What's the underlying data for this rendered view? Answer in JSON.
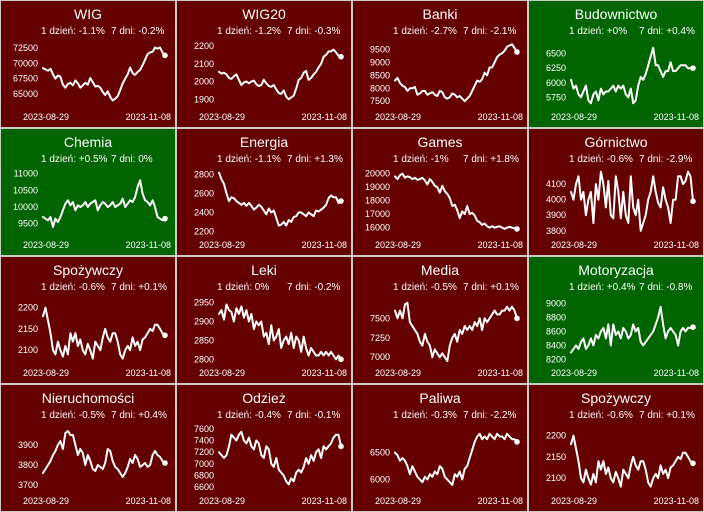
{
  "colors": {
    "down": "#650000",
    "up": "#006400",
    "line": "#ffffff",
    "text": "#ffffff"
  },
  "chart_data": [
    {
      "type": "line",
      "title": "WIG",
      "stat_1d": "1 dzień: -1.1%",
      "stat_7d": "7 dni: -0.2%",
      "trend": "down",
      "yticks": [
        "72500",
        "70000",
        "67500",
        "65000"
      ],
      "ytick_values": [
        72500,
        70000,
        67500,
        65000
      ],
      "ylim": [
        62500,
        74000
      ],
      "xlabels": [
        "2023-08-29",
        "2023-11-08"
      ],
      "values": [
        69200,
        69000,
        68800,
        69100,
        68200,
        67500,
        68000,
        67800,
        66500,
        66000,
        66600,
        66800,
        66400,
        67200,
        66700,
        66000,
        66400,
        66800,
        66500,
        67600,
        66900,
        66200,
        66300,
        66000,
        65300,
        64800,
        65400,
        64500,
        63900,
        64200,
        64600,
        65600,
        66700,
        67500,
        68200,
        69300,
        68400,
        68100,
        68600,
        68900,
        69700,
        70600,
        71500,
        71800,
        71900,
        72600,
        72400,
        72600,
        71800,
        71300
      ]
    },
    {
      "type": "line",
      "title": "WIG20",
      "stat_1d": "1 dzień: -1.2%",
      "stat_7d": "7 dni: -0.3%",
      "trend": "down",
      "yticks": [
        "2200",
        "2100",
        "2000",
        "1900"
      ],
      "ytick_values": [
        2200,
        2100,
        2000,
        1900
      ],
      "ylim": [
        1845,
        2240
      ],
      "xlabels": [
        "2023-08-29",
        "2023-11-08"
      ],
      "values": [
        2055,
        2045,
        2050,
        2040,
        2020,
        2015,
        2030,
        2040,
        2010,
        1980,
        1995,
        2000,
        1990,
        2000,
        2005,
        1985,
        1975,
        1980,
        2010,
        1990,
        1975,
        1970,
        1980,
        1955,
        1935,
        1930,
        1950,
        1915,
        1900,
        1910,
        1920,
        1960,
        2010,
        2020,
        2050,
        2060,
        2010,
        2020,
        2040,
        2055,
        2080,
        2100,
        2140,
        2150,
        2170,
        2170,
        2180,
        2165,
        2145,
        2140
      ]
    },
    {
      "type": "line",
      "title": "Banki",
      "stat_1d": "1 dzień: -2.7%",
      "stat_7d": "7 dni: -2.1%",
      "trend": "down",
      "yticks": [
        "9500",
        "9000",
        "8500",
        "8000",
        "7500"
      ],
      "ytick_values": [
        9500,
        9000,
        8500,
        8000,
        7500
      ],
      "ylim": [
        7200,
        9900
      ],
      "xlabels": [
        "2023-08-29",
        "2023-11-08"
      ],
      "values": [
        8300,
        8400,
        8200,
        8100,
        8050,
        7900,
        8000,
        8000,
        8050,
        7750,
        7800,
        7900,
        7900,
        7750,
        7800,
        7850,
        7750,
        7700,
        7900,
        7850,
        7650,
        7600,
        7650,
        7800,
        7750,
        7650,
        7700,
        7600,
        7500,
        7600,
        7700,
        7900,
        8100,
        8300,
        8250,
        8350,
        8600,
        8500,
        8800,
        8800,
        9000,
        9200,
        9300,
        9350,
        9450,
        9600,
        9650,
        9700,
        9550,
        9400
      ]
    },
    {
      "type": "line",
      "title": "Budownictwo",
      "stat_1d": "1 dzień: +0%",
      "stat_7d": "7 dni: +0.4%",
      "trend": "up",
      "yticks": [
        "6500",
        "6250",
        "6000",
        "5750"
      ],
      "ytick_values": [
        6500,
        6250,
        6000,
        5750
      ],
      "ylim": [
        5550,
        6750
      ],
      "xlabels": [
        "2023-08-29",
        "2023-11-08"
      ],
      "values": [
        6050,
        5900,
        5950,
        5800,
        5750,
        5850,
        5950,
        5700,
        5650,
        5800,
        5850,
        5700,
        5900,
        5800,
        5850,
        5850,
        5900,
        5950,
        5850,
        5950,
        5900,
        5950,
        5800,
        5750,
        5900,
        5650,
        5700,
        5950,
        6100,
        6050,
        6150,
        6300,
        6450,
        6600,
        6300,
        6300,
        6200,
        6100,
        6200,
        6200,
        6350,
        6200,
        6200,
        6250,
        6300,
        6300,
        6300,
        6250,
        6250,
        6250
      ]
    },
    {
      "type": "line",
      "title": "Chemia",
      "stat_1d": "1 dzień: +0.5%",
      "stat_7d": "7 dni: 0%",
      "trend": "up",
      "yticks": [
        "11000",
        "10500",
        "10000",
        "9500"
      ],
      "ytick_values": [
        11000,
        10500,
        10000,
        9500
      ],
      "ylim": [
        9100,
        11200
      ],
      "xlabels": [
        "2023-08-29",
        "2023-11-08"
      ],
      "values": [
        9700,
        9650,
        9600,
        9700,
        9400,
        9650,
        9550,
        9700,
        9900,
        10100,
        10200,
        10050,
        10150,
        9900,
        10050,
        10000,
        10050,
        10150,
        10000,
        10100,
        10150,
        10200,
        9900,
        10050,
        10150,
        10100,
        10000,
        10050,
        10150,
        10000,
        10050,
        10100,
        10250,
        10000,
        10100,
        10200,
        10150,
        10300,
        10600,
        10800,
        10400,
        10200,
        10150,
        10050,
        10200,
        10000,
        9700,
        9650,
        9600,
        9650
      ]
    },
    {
      "type": "line",
      "title": "Energia",
      "stat_1d": "1 dzień: -1.1%",
      "stat_7d": "7 dni: +1.3%",
      "trend": "down",
      "yticks": [
        "2800",
        "2600",
        "2400",
        "2200"
      ],
      "ytick_values": [
        2800,
        2600,
        2400,
        2200
      ],
      "ylim": [
        2140,
        2880
      ],
      "xlabels": [
        "2023-08-29",
        "2023-11-08"
      ],
      "values": [
        2820,
        2750,
        2700,
        2600,
        2520,
        2560,
        2550,
        2520,
        2500,
        2480,
        2500,
        2470,
        2500,
        2470,
        2430,
        2450,
        2480,
        2460,
        2420,
        2380,
        2440,
        2400,
        2420,
        2340,
        2260,
        2270,
        2300,
        2260,
        2320,
        2300,
        2350,
        2360,
        2400,
        2400,
        2380,
        2360,
        2400,
        2380,
        2360,
        2420,
        2410,
        2430,
        2450,
        2480,
        2550,
        2580,
        2560,
        2560,
        2500,
        2520
      ]
    },
    {
      "type": "line",
      "title": "Games",
      "stat_1d": "1 dzień: -1%",
      "stat_7d": "7 dni: +1.8%",
      "trend": "down",
      "yticks": [
        "20000",
        "19000",
        "18000",
        "17000",
        "16000"
      ],
      "ytick_values": [
        20000,
        19000,
        18000,
        17000,
        16000
      ],
      "ylim": [
        15300,
        20500
      ],
      "xlabels": [
        "2023-08-29",
        "2023-11-08"
      ],
      "values": [
        19800,
        19600,
        19900,
        20000,
        19700,
        19800,
        19750,
        19600,
        19700,
        19550,
        19600,
        19700,
        19500,
        19200,
        19600,
        19400,
        19100,
        19000,
        18600,
        19100,
        18700,
        18500,
        18200,
        17600,
        17700,
        17300,
        16700,
        17200,
        17000,
        17600,
        17000,
        17100,
        16900,
        16500,
        16400,
        16200,
        16300,
        16100,
        16000,
        16100,
        16000,
        16050,
        16100,
        16000,
        15900,
        16000,
        16050,
        16000,
        15950,
        15900
      ]
    },
    {
      "type": "line",
      "title": "Górnictwo",
      "stat_1d": "1 dzień: -0.6%",
      "stat_7d": "7 dni: -2.9%",
      "trend": "down",
      "yticks": [
        "4100",
        "4000",
        "3900",
        "3800"
      ],
      "ytick_values": [
        4100,
        4000,
        3900,
        3800
      ],
      "ylim": [
        3760,
        4210
      ],
      "xlabels": [
        "2023-08-29",
        "2023-11-08"
      ],
      "values": [
        4050,
        4000,
        4100,
        4150,
        4000,
        4050,
        3900,
        4000,
        4050,
        3850,
        4100,
        4000,
        4180,
        4100,
        3950,
        4120,
        3900,
        3880,
        4150,
        4050,
        3880,
        4050,
        3900,
        3850,
        4150,
        3950,
        3900,
        4000,
        3800,
        3850,
        3900,
        4000,
        4050,
        4150,
        4050,
        3980,
        3950,
        4080,
        4000,
        3950,
        3850,
        4000,
        4000,
        4150,
        4150,
        4100,
        4120,
        4180,
        4150,
        3990
      ]
    },
    {
      "type": "line",
      "title": "Spożywczy",
      "stat_1d": "1 dzień: -0.6%",
      "stat_7d": "7 dni: +0.1%",
      "trend": "down",
      "yticks": [
        "2200",
        "2150",
        "2100"
      ],
      "ytick_values": [
        2200,
        2150,
        2100
      ],
      "ylim": [
        2065,
        2230
      ],
      "xlabels": [
        "2023-08-29",
        "2023-11-08"
      ],
      "values": [
        2180,
        2200,
        2170,
        2140,
        2100,
        2090,
        2120,
        2100,
        2085,
        2110,
        2090,
        2140,
        2120,
        2140,
        2110,
        2125,
        2100,
        2090,
        2115,
        2100,
        2080,
        2120,
        2110,
        2100,
        2130,
        2150,
        2130,
        2120,
        2140,
        2140,
        2120,
        2090,
        2080,
        2100,
        2110,
        2100,
        2130,
        2110,
        2120,
        2100,
        2125,
        2130,
        2140,
        2150,
        2145,
        2160,
        2160,
        2150,
        2140,
        2135
      ]
    },
    {
      "type": "line",
      "title": "Leki",
      "stat_1d": "1 dzień: 0%",
      "stat_7d": "7 dni: -0.2%",
      "trend": "down",
      "yticks": [
        "2950",
        "2900",
        "2850",
        "2800"
      ],
      "ytick_values": [
        2950,
        2900,
        2850,
        2800
      ],
      "ylim": [
        2785,
        2970
      ],
      "xlabels": [
        "2023-08-29",
        "2023-11-08"
      ],
      "values": [
        2920,
        2930,
        2905,
        2945,
        2930,
        2925,
        2900,
        2935,
        2920,
        2940,
        2910,
        2930,
        2900,
        2920,
        2880,
        2900,
        2890,
        2900,
        2860,
        2870,
        2840,
        2890,
        2850,
        2860,
        2880,
        2830,
        2850,
        2860,
        2840,
        2870,
        2830,
        2860,
        2850,
        2820,
        2860,
        2830,
        2810,
        2830,
        2820,
        2810,
        2810,
        2820,
        2810,
        2820,
        2810,
        2820,
        2810,
        2800,
        2810,
        2800
      ]
    },
    {
      "type": "line",
      "title": "Media",
      "stat_1d": "1 dzień: -0.5%",
      "stat_7d": "7 dni: +0.1%",
      "trend": "down",
      "yticks": [
        "7500",
        "7250",
        "7000"
      ],
      "ytick_values": [
        7500,
        7250,
        7000
      ],
      "ylim": [
        6900,
        7800
      ],
      "xlabels": [
        "2023-08-29",
        "2023-11-08"
      ],
      "values": [
        7600,
        7500,
        7600,
        7500,
        7680,
        7700,
        7450,
        7400,
        7350,
        7300,
        7200,
        7150,
        7300,
        7200,
        7150,
        7000,
        7100,
        7050,
        7000,
        7050,
        7000,
        6950,
        7150,
        7250,
        7300,
        7200,
        7350,
        7300,
        7400,
        7350,
        7400,
        7350,
        7450,
        7400,
        7500,
        7350,
        7500,
        7450,
        7500,
        7550,
        7600,
        7550,
        7550,
        7600,
        7600,
        7650,
        7600,
        7650,
        7600,
        7500
      ]
    },
    {
      "type": "line",
      "title": "Motoryzacja",
      "stat_1d": "1 dzień: +0.4%",
      "stat_7d": "7 dni: -0.8%",
      "trend": "up",
      "yticks": [
        "9000",
        "8800",
        "8600",
        "8400",
        "8200"
      ],
      "ytick_values": [
        9000,
        8800,
        8600,
        8400,
        8200
      ],
      "ylim": [
        8120,
        9120
      ],
      "xlabels": [
        "2023-08-29",
        "2023-11-08"
      ],
      "values": [
        8300,
        8350,
        8400,
        8350,
        8450,
        8500,
        8350,
        8400,
        8500,
        8400,
        8550,
        8500,
        8600,
        8650,
        8500,
        8700,
        8400,
        8700,
        8550,
        8600,
        8500,
        8650,
        8600,
        8500,
        8550,
        8700,
        8600,
        8650,
        8450,
        8400,
        8450,
        8500,
        8550,
        8600,
        8700,
        8800,
        8950,
        8700,
        8500,
        8600,
        8650,
        8600,
        8550,
        8400,
        8600,
        8650,
        8600,
        8650,
        8650,
        8660
      ]
    },
    {
      "type": "line",
      "title": "Nieruchomości",
      "stat_1d": "1 dzień: -0.5%",
      "stat_7d": "7 dni: +0.4%",
      "trend": "down",
      "yticks": [
        "3900",
        "3800",
        "3700"
      ],
      "ytick_values": [
        3900,
        3800,
        3700
      ],
      "ylim": [
        3660,
        4010
      ],
      "xlabels": [
        "2023-08-29",
        "2023-11-08"
      ],
      "values": [
        3760,
        3780,
        3800,
        3820,
        3850,
        3870,
        3900,
        3920,
        3880,
        3960,
        3970,
        3950,
        3950,
        3900,
        3850,
        3880,
        3860,
        3800,
        3850,
        3820,
        3780,
        3770,
        3800,
        3790,
        3780,
        3810,
        3880,
        3870,
        3820,
        3790,
        3780,
        3760,
        3740,
        3760,
        3790,
        3830,
        3810,
        3850,
        3830,
        3790,
        3800,
        3810,
        3790,
        3800,
        3850,
        3870,
        3850,
        3840,
        3820,
        3810
      ]
    },
    {
      "type": "line",
      "title": "Odzież",
      "stat_1d": "1 dzień: -0.4%",
      "stat_7d": "7 dni: -0.1%",
      "trend": "down",
      "yticks": [
        "7600",
        "7400",
        "7200",
        "7000",
        "6800",
        "6600"
      ],
      "ytick_values": [
        7600,
        7400,
        7200,
        7000,
        6800,
        6600
      ],
      "ylim": [
        6500,
        7700
      ],
      "xlabels": [
        "2023-08-29",
        "2023-11-08"
      ],
      "values": [
        7200,
        7150,
        7100,
        7150,
        7300,
        7500,
        7450,
        7400,
        7500,
        7550,
        7400,
        7350,
        7450,
        7300,
        7250,
        7400,
        7350,
        7150,
        7100,
        7300,
        7250,
        7000,
        6950,
        7100,
        6900,
        6850,
        6800,
        6700,
        6650,
        6750,
        6700,
        6850,
        6900,
        6850,
        6950,
        7100,
        7000,
        7150,
        7050,
        7200,
        7250,
        7100,
        7300,
        7250,
        7300,
        7350,
        7450,
        7500,
        7500,
        7300
      ]
    },
    {
      "type": "line",
      "title": "Paliwa",
      "stat_1d": "1 dzień: -0.3%",
      "stat_7d": "7 dni: -2.2%",
      "trend": "down",
      "yticks": [
        "6500",
        "6000"
      ],
      "ytick_values": [
        6500,
        6000
      ],
      "ylim": [
        5750,
        7050
      ],
      "xlabels": [
        "2023-08-29",
        "2023-11-08"
      ],
      "values": [
        6500,
        6450,
        6350,
        6400,
        6350,
        6250,
        6100,
        6250,
        6150,
        6050,
        6000,
        5950,
        6050,
        6000,
        6100,
        6050,
        6150,
        6100,
        6250,
        6200,
        6050,
        6000,
        5950,
        5900,
        6100,
        6050,
        6150,
        6000,
        6200,
        6250,
        6400,
        6550,
        6700,
        6800,
        6850,
        6750,
        6800,
        6750,
        6850,
        6800,
        6750,
        6850,
        6800,
        6800,
        6750,
        6850,
        6800,
        6750,
        6750,
        6700
      ]
    },
    {
      "type": "line",
      "title": "Spożywczy",
      "stat_1d": "1 dzień: -0.6%",
      "stat_7d": "7 dni: +0.1%",
      "trend": "down",
      "yticks": [
        "2200",
        "2150",
        "2100"
      ],
      "ytick_values": [
        2200,
        2150,
        2100
      ],
      "ylim": [
        2065,
        2230
      ],
      "xlabels": [
        "2023-08-29",
        "2023-11-08"
      ],
      "values": [
        2180,
        2200,
        2170,
        2140,
        2100,
        2090,
        2120,
        2100,
        2085,
        2110,
        2090,
        2140,
        2120,
        2140,
        2110,
        2125,
        2100,
        2090,
        2115,
        2100,
        2080,
        2120,
        2110,
        2100,
        2130,
        2150,
        2130,
        2120,
        2140,
        2140,
        2120,
        2090,
        2080,
        2100,
        2110,
        2100,
        2130,
        2110,
        2120,
        2100,
        2125,
        2130,
        2140,
        2150,
        2145,
        2160,
        2160,
        2150,
        2140,
        2135
      ]
    }
  ]
}
